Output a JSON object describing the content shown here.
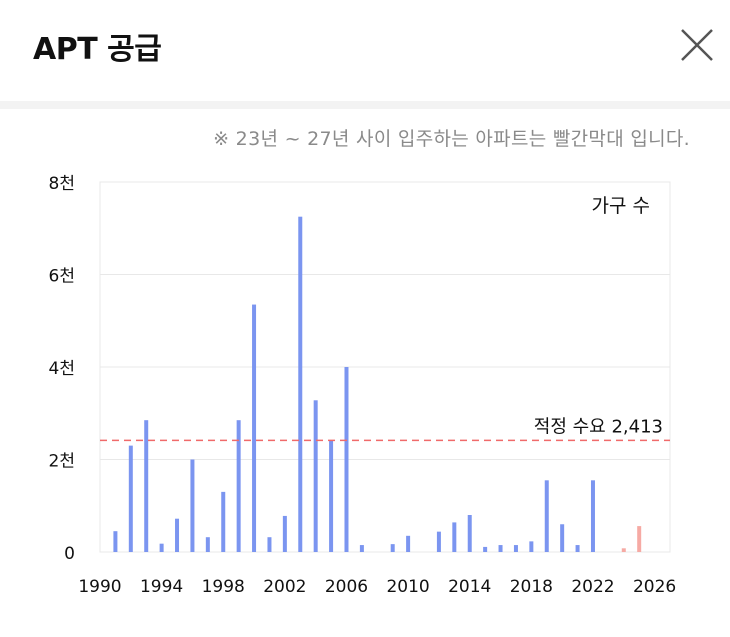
{
  "header": {
    "title": "APT 공급"
  },
  "note": "※ 23년 ~ 27년 사이 입주하는 아파트는 빨간막대 입니다.",
  "colors": {
    "bar": "#7b95f0",
    "future_bar": "#f6aaa4",
    "reference_line": "#f06a6a",
    "grid": "#e8e8e8"
  },
  "icons": {
    "close": "close-icon"
  },
  "chart_data": {
    "type": "bar",
    "unit_label": "가구 수",
    "xlim": [
      1990,
      2027
    ],
    "ylim": [
      0,
      8000
    ],
    "x_ticks": [
      1990,
      1994,
      1998,
      2002,
      2006,
      2010,
      2014,
      2018,
      2022,
      2026
    ],
    "y_ticks": [
      {
        "value": 0,
        "label": "0"
      },
      {
        "value": 2000,
        "label": "2천"
      },
      {
        "value": 4000,
        "label": "4천"
      },
      {
        "value": 6000,
        "label": "6천"
      },
      {
        "value": 8000,
        "label": "8천"
      }
    ],
    "grid": true,
    "reference_line": {
      "value": 2413,
      "label": "적정 수요 2,413"
    },
    "series": [
      {
        "x": [
          1991,
          1992,
          1993,
          1994,
          1995,
          1996,
          1997,
          1998,
          1999,
          2000,
          2001,
          2002,
          2003,
          2004,
          2005,
          2006,
          2007,
          2009,
          2010,
          2012,
          2013,
          2014,
          2015,
          2016,
          2017,
          2018,
          2019,
          2020,
          2021,
          2022
        ],
        "values": [
          450,
          2300,
          2850,
          180,
          720,
          2000,
          320,
          1300,
          2850,
          5350,
          320,
          780,
          7250,
          3280,
          2400,
          4000,
          150,
          170,
          350,
          440,
          640,
          800,
          110,
          150,
          150,
          230,
          1550,
          600,
          150,
          1550
        ]
      },
      {
        "x": [
          2024,
          2025
        ],
        "values": [
          80,
          560
        ]
      }
    ]
  }
}
